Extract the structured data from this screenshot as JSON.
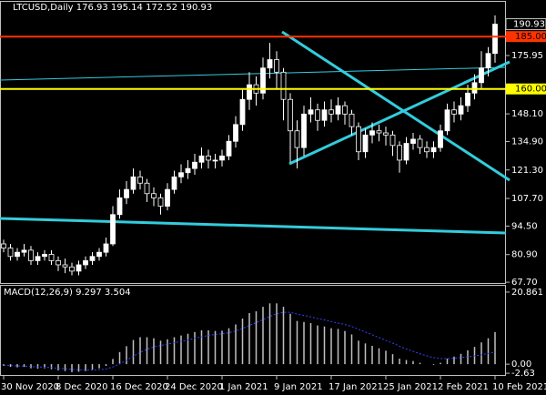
{
  "chart_data": [
    {
      "type": "candlestick",
      "title": "LTCUSD,Daily 176.93 195.14 172.52 190.93",
      "categories": [
        "30 Nov 2020",
        null,
        null,
        null,
        null,
        null,
        null,
        null,
        "8 Dec 2020",
        null,
        null,
        null,
        null,
        null,
        null,
        null,
        "16 Dec 2020",
        null,
        null,
        null,
        null,
        null,
        null,
        null,
        "24 Dec 2020",
        null,
        null,
        null,
        null,
        null,
        null,
        null,
        "1 Jan 2021",
        null,
        null,
        null,
        null,
        null,
        null,
        null,
        "9 Jan 2021",
        null,
        null,
        null,
        null,
        null,
        null,
        null,
        "17 Jan 2021",
        null,
        null,
        null,
        null,
        null,
        null,
        null,
        "25 Jan 2021",
        null,
        null,
        null,
        null,
        null,
        null,
        null,
        "2 Feb 2021",
        null,
        null,
        null,
        null,
        null,
        null,
        null,
        "10 Feb 2021"
      ],
      "open": [
        86,
        84,
        80,
        82,
        83,
        78,
        80,
        81,
        78,
        76,
        75,
        73,
        76,
        78,
        80,
        82,
        86,
        100,
        108,
        112,
        118,
        115,
        110,
        108,
        104,
        112,
        118,
        120,
        122,
        125,
        128,
        126,
        126,
        128,
        135,
        143,
        155,
        162,
        158,
        170,
        174,
        168,
        155,
        140,
        132,
        148,
        150,
        145,
        150,
        148,
        152,
        148,
        142,
        130,
        138,
        140,
        139,
        138,
        133,
        126,
        134,
        136,
        132,
        130,
        132,
        140,
        150,
        148,
        152,
        158,
        163,
        170,
        176.93
      ],
      "high": [
        88,
        86,
        84,
        86,
        85,
        82,
        83,
        83,
        80,
        79,
        77,
        78,
        80,
        82,
        84,
        89,
        104,
        112,
        116,
        122,
        121,
        117,
        113,
        110,
        115,
        121,
        124,
        126,
        129,
        132,
        131,
        129,
        131,
        138,
        147,
        160,
        168,
        166,
        175,
        182,
        178,
        170,
        158,
        145,
        152,
        156,
        153,
        154,
        155,
        156,
        154,
        150,
        144,
        141,
        144,
        143,
        142,
        140,
        135,
        137,
        139,
        138,
        135,
        135,
        143,
        153,
        154,
        156,
        162,
        167,
        178,
        180,
        195.14
      ],
      "low": [
        82,
        78,
        78,
        80,
        76,
        76,
        78,
        76,
        73,
        72,
        71,
        71,
        74,
        76,
        78,
        80,
        85,
        98,
        105,
        110,
        112,
        106,
        104,
        100,
        102,
        110,
        115,
        117,
        119,
        122,
        122,
        122,
        123,
        126,
        132,
        140,
        150,
        152,
        155,
        165,
        160,
        145,
        125,
        122,
        128,
        144,
        140,
        142,
        144,
        145,
        143,
        138,
        126,
        127,
        134,
        135,
        133,
        128,
        120,
        124,
        131,
        129,
        127,
        127,
        130,
        138,
        144,
        145,
        149,
        155,
        160,
        166,
        172.52
      ],
      "close": [
        84,
        80,
        82,
        83,
        78,
        80,
        81,
        78,
        76,
        75,
        73,
        76,
        78,
        80,
        82,
        86,
        100,
        108,
        112,
        118,
        115,
        110,
        108,
        104,
        112,
        118,
        120,
        122,
        125,
        128,
        126,
        126,
        128,
        135,
        143,
        155,
        162,
        158,
        170,
        174,
        168,
        155,
        140,
        132,
        148,
        150,
        145,
        150,
        148,
        152,
        148,
        142,
        130,
        138,
        140,
        139,
        138,
        133,
        126,
        134,
        136,
        132,
        130,
        132,
        140,
        150,
        148,
        152,
        158,
        163,
        170,
        176.93,
        190.93
      ],
      "up_color": "#ffffff",
      "down_color": "#000000",
      "ylim": [
        67.3,
        201.6
      ],
      "yticks": [
        175.95,
        {
          "value": 148.1,
          "label": "148.10"
        },
        {
          "value": 134.9,
          "label": "134.90"
        },
        {
          "value": 121.3,
          "label": "121.30"
        },
        {
          "value": 107.7,
          "label": "107.70"
        },
        {
          "value": 94.5,
          "label": "94.50"
        },
        {
          "value": 80.9,
          "label": "80.90"
        },
        {
          "value": 67.7,
          "label": "67.70"
        }
      ],
      "hlines": [
        {
          "value": 185,
          "label": "185.00",
          "color": "#ff3300"
        },
        {
          "value": 160,
          "label": "160.00",
          "color": "#ffff00"
        }
      ],
      "current_price": {
        "value": 190.93,
        "label": "190.93"
      }
    },
    {
      "type": "macd",
      "title": "MACD(12,26,9) 9.297 3.504",
      "series": [
        {
          "name": "MACD",
          "color": "#c0c0c0",
          "values": [
            -0.5,
            -0.8,
            -0.9,
            -0.8,
            -1.2,
            -1.3,
            -1.2,
            -1.5,
            -1.8,
            -2.0,
            -2.3,
            -2.2,
            -2.0,
            -1.6,
            -1.2,
            -0.5,
            1.5,
            3.5,
            5.2,
            7.0,
            7.8,
            7.8,
            7.5,
            6.8,
            7.2,
            7.8,
            8.3,
            8.8,
            9.3,
            9.8,
            9.8,
            9.6,
            9.7,
            10.4,
            11.5,
            13.2,
            14.8,
            15.3,
            16.6,
            17.6,
            17.6,
            16.6,
            14.6,
            12.5,
            12.2,
            11.9,
            11.2,
            10.9,
            10.4,
            10.2,
            9.6,
            8.6,
            6.8,
            6.0,
            5.3,
            4.6,
            3.9,
            2.9,
            1.6,
            1.2,
            0.9,
            0.4,
            0.0,
            -0.2,
            0.4,
            1.6,
            2.2,
            3.0,
            4.0,
            5.0,
            6.3,
            7.5,
            9.297
          ]
        },
        {
          "name": "Signal",
          "color": "#3344ff",
          "values": [
            -0.3,
            -0.4,
            -0.5,
            -0.6,
            -0.7,
            -0.8,
            -0.9,
            -1.0,
            -1.2,
            -1.3,
            -1.5,
            -1.6,
            -1.7,
            -1.7,
            -1.6,
            -1.4,
            -0.8,
            0.1,
            1.1,
            2.3,
            3.4,
            4.3,
            5.0,
            5.4,
            5.8,
            6.2,
            6.6,
            7.0,
            7.5,
            7.9,
            8.3,
            8.6,
            8.8,
            9.1,
            9.6,
            10.3,
            11.2,
            12.0,
            12.9,
            13.8,
            14.6,
            15.0,
            15.0,
            14.5,
            14.1,
            13.7,
            13.2,
            12.8,
            12.3,
            11.9,
            11.5,
            10.9,
            10.1,
            9.3,
            8.5,
            7.7,
            6.9,
            6.1,
            5.2,
            4.4,
            3.7,
            3.0,
            2.4,
            1.9,
            1.6,
            1.6,
            1.7,
            1.9,
            2.1,
            2.4,
            2.7,
            3.1,
            3.504
          ]
        }
      ],
      "ylim": [
        -3.13,
        22.69
      ],
      "yticks": [
        20.861,
        {
          "value": 0,
          "label": "0.00"
        },
        -2.63
      ]
    }
  ]
}
